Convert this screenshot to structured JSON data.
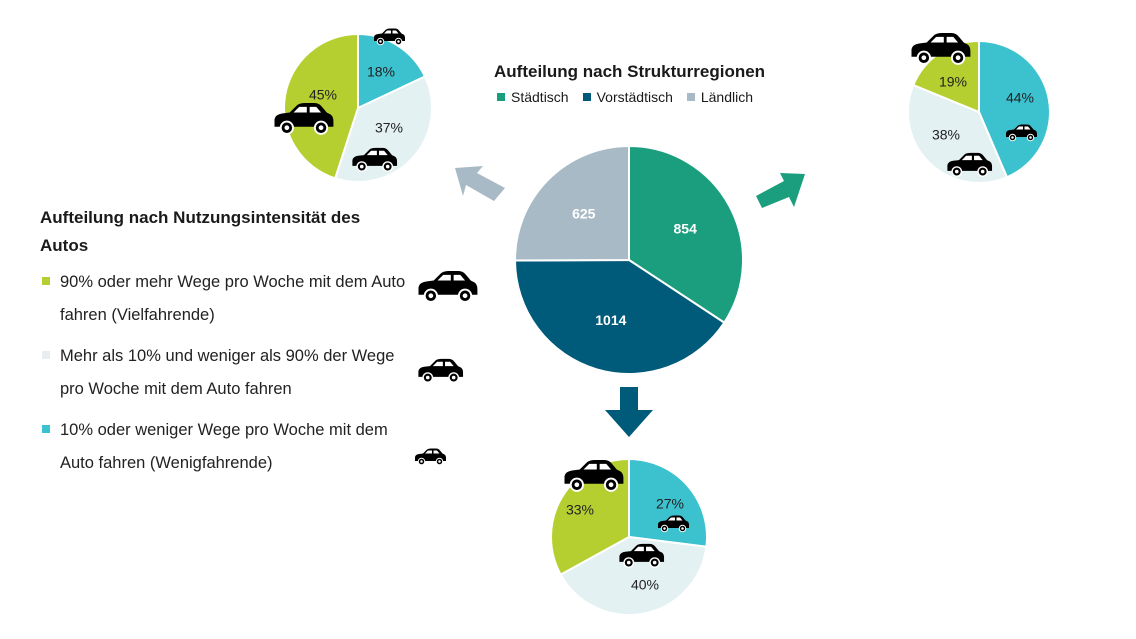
{
  "colors": {
    "staedtisch": "#1a9e7e",
    "vorstaedtisch": "#005a7a",
    "laendlich": "#a8bac6",
    "vielfahrende": "#b5cf31",
    "mittel": "#e3f1f3",
    "wenigfahrende": "#3cc1cf",
    "arrow_up_left": "#a8bac6",
    "arrow_right": "#1a9e7e",
    "arrow_down": "#005a7a"
  },
  "usage_legend": {
    "title": "Aufteilung nach Nutzungsintensität des Autos",
    "items": [
      {
        "label": "90% oder mehr Wege pro Woche mit dem Auto fahren (Vielfahrende)",
        "color": "#b5cf31",
        "icon": "car-large-icon"
      },
      {
        "label": "Mehr als 10% und weniger als 90% der Wege pro Woche mit dem Auto fahren",
        "color": "#e3f1f3",
        "icon": "car-medium-icon"
      },
      {
        "label": "10% oder weniger Wege pro Woche mit dem Auto fahren (Wenigfahrende)",
        "color": "#3cc1cf",
        "icon": "car-small-icon"
      }
    ]
  },
  "structure_legend": {
    "title": "Aufteilung nach Strukturregionen",
    "items": [
      {
        "label": "Städtisch",
        "color": "#1a9e7e"
      },
      {
        "label": "Vorstädtisch",
        "color": "#005a7a"
      },
      {
        "label": "Ländlich",
        "color": "#a8bac6"
      }
    ]
  },
  "chart_data": [
    {
      "id": "center",
      "type": "pie",
      "title": "Aufteilung nach Strukturregionen",
      "slices": [
        {
          "name": "Städtisch",
          "value": 854,
          "label": "854",
          "color": "#1a9e7e"
        },
        {
          "name": "Vorstädtisch",
          "value": 1014,
          "label": "1014",
          "color": "#005a7a"
        },
        {
          "name": "Ländlich",
          "value": 625,
          "label": "625",
          "color": "#a8bac6"
        }
      ]
    },
    {
      "id": "laendlich",
      "type": "pie",
      "region": "Ländlich",
      "slices": [
        {
          "name": "Wenigfahrende",
          "value": 18,
          "label": "18%",
          "color": "#3cc1cf"
        },
        {
          "name": "Mittel",
          "value": 37,
          "label": "37%",
          "color": "#e3f1f3"
        },
        {
          "name": "Vielfahrende",
          "value": 45,
          "label": "45%",
          "color": "#b5cf31"
        }
      ]
    },
    {
      "id": "staedtisch",
      "type": "pie",
      "region": "Städtisch",
      "slices": [
        {
          "name": "Wenigfahrende",
          "value": 44,
          "label": "44%",
          "color": "#3cc1cf"
        },
        {
          "name": "Mittel",
          "value": 38,
          "label": "38%",
          "color": "#e3f1f3"
        },
        {
          "name": "Vielfahrende",
          "value": 19,
          "label": "19%",
          "color": "#b5cf31"
        }
      ]
    },
    {
      "id": "vorstaedtisch",
      "type": "pie",
      "region": "Vorstädtisch",
      "slices": [
        {
          "name": "Wenigfahrende",
          "value": 27,
          "label": "27%",
          "color": "#3cc1cf"
        },
        {
          "name": "Mittel",
          "value": 40,
          "label": "40%",
          "color": "#e3f1f3"
        },
        {
          "name": "Vielfahrende",
          "value": 33,
          "label": "33%",
          "color": "#b5cf31"
        }
      ]
    }
  ]
}
